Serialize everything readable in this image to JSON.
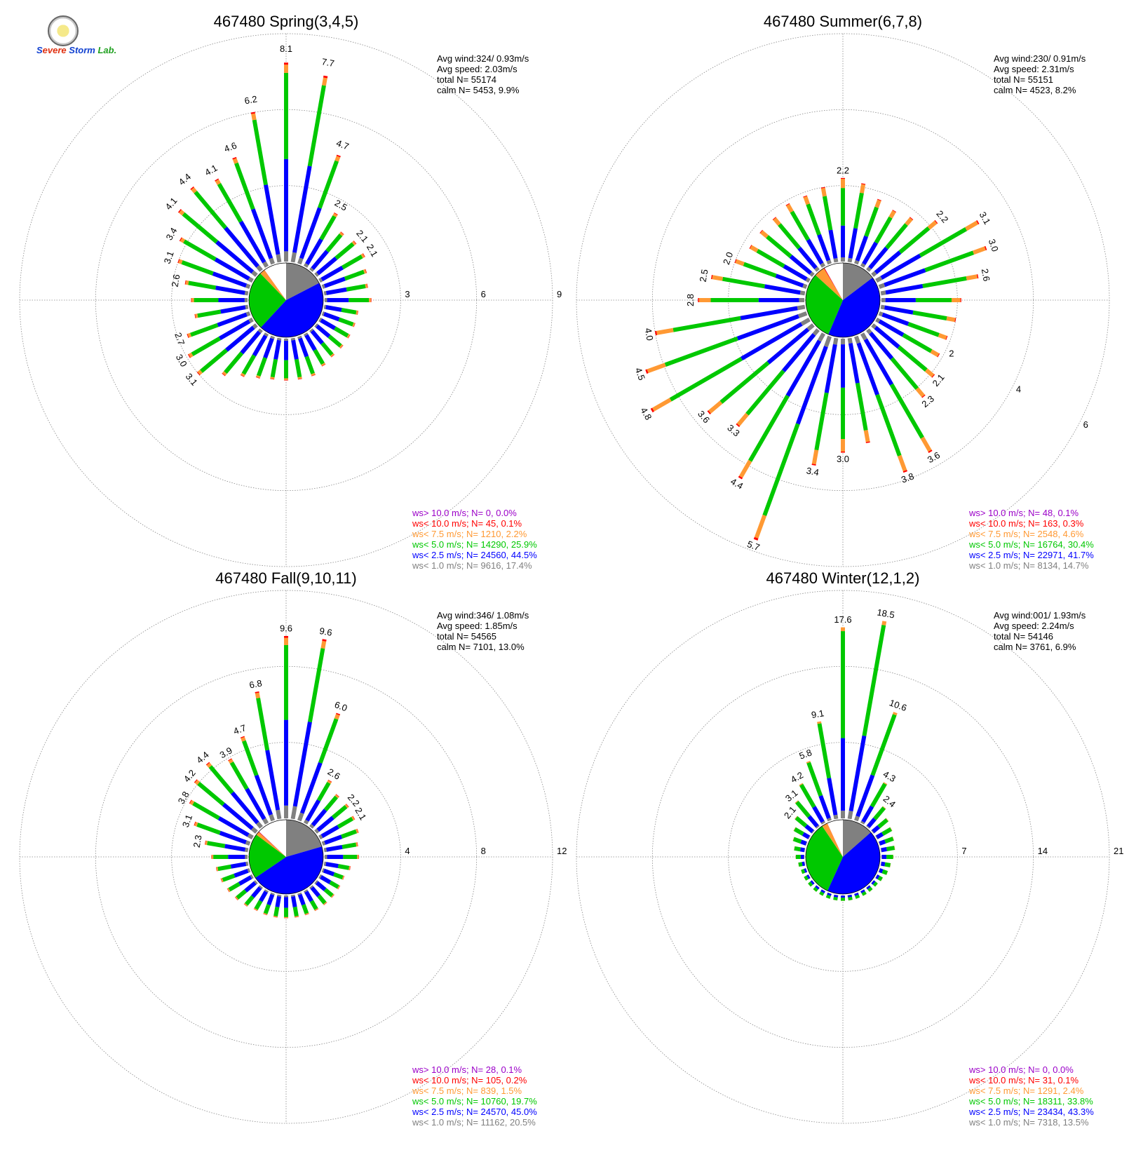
{
  "logo": {
    "text": "Severe Storm Lab."
  },
  "colors": {
    "ws_gt10": "#9b00c8",
    "ws_lt10": "#ff0000",
    "ws_lt7_5": "#ff9933",
    "ws_lt5": "#00c800",
    "ws_lt2_5": "#0000ff",
    "ws_lt1": "#808080",
    "calm": "#ffffff",
    "grid": "#888888"
  },
  "chart_data": [
    {
      "type": "polar-bar",
      "title": "467480 Spring(3,4,5)",
      "stats": [
        "Avg wind:324/ 0.93m/s",
        "Avg speed: 2.03m/s",
        "total N=      55174",
        "calm N=   5453,   9.9%"
      ],
      "ring_labels": [
        "3",
        "6",
        "9"
      ],
      "rmax": 9,
      "bar_labels": [
        [
          "8.1",
          0
        ],
        [
          "7.7",
          10
        ],
        [
          "4.7",
          20
        ],
        [
          "2.5",
          30
        ],
        [
          "2.1",
          50
        ],
        [
          "2.1",
          60
        ],
        [
          "6.2",
          350
        ],
        [
          "4.6",
          340
        ],
        [
          "4.1",
          330
        ],
        [
          "4.4",
          320
        ],
        [
          "4.1",
          310
        ],
        [
          "3.4",
          300
        ],
        [
          "3.1",
          290
        ],
        [
          "2.6",
          280
        ],
        [
          "2.7",
          250
        ],
        [
          "3.0",
          240
        ],
        [
          "3.1",
          230
        ]
      ],
      "directions": [
        0,
        10,
        20,
        30,
        40,
        50,
        60,
        70,
        80,
        90,
        100,
        110,
        120,
        130,
        140,
        150,
        160,
        170,
        180,
        190,
        200,
        210,
        220,
        230,
        240,
        250,
        260,
        270,
        280,
        290,
        300,
        310,
        320,
        330,
        340,
        350
      ],
      "totals": [
        8.1,
        7.7,
        4.7,
        2.5,
        2.0,
        2.1,
        2.1,
        1.9,
        1.8,
        1.9,
        1.4,
        1.4,
        1.4,
        1.4,
        1.4,
        1.5,
        1.7,
        1.7,
        1.7,
        1.7,
        1.8,
        2.0,
        2.4,
        3.1,
        3.0,
        2.7,
        2.2,
        2.3,
        2.6,
        3.1,
        3.4,
        4.1,
        4.4,
        4.1,
        4.6,
        6.2
      ],
      "shares": [
        0.05,
        0.45,
        0.42,
        0.04,
        0.01
      ],
      "pie": [
        17.4,
        44.5,
        25.9,
        2.2,
        0.1,
        0.0,
        9.9
      ],
      "legend": [
        "ws> 10.0 m/s; N=     0,  0.0%",
        "ws< 10.0 m/s; N=    45,  0.1%",
        "ws<  7.5 m/s; N=  1210,  2.2%",
        "ws<  5.0 m/s; N= 14290, 25.9%",
        "ws<  2.5 m/s; N= 24560, 44.5%",
        "ws<  1.0 m/s; N=  9616, 17.4%"
      ]
    },
    {
      "type": "polar-bar",
      "title": "467480 Summer(6,7,8)",
      "stats": [
        "Avg wind:230/ 0.91m/s",
        "Avg speed: 2.31m/s",
        "total N=      55151",
        "calm N=   4523,   8.2%"
      ],
      "ring_labels": [
        "2",
        "4",
        "6"
      ],
      "rmax": 6,
      "bar_labels": [
        [
          "2.2",
          0
        ],
        [
          "2.2",
          50
        ],
        [
          "3.1",
          60
        ],
        [
          "3.0",
          70
        ],
        [
          "2.6",
          80
        ],
        [
          "2.1",
          130
        ],
        [
          "2.3",
          140
        ],
        [
          "3.6",
          150
        ],
        [
          "3.8",
          160
        ],
        [
          "3.0",
          180
        ],
        [
          "3.4",
          190
        ],
        [
          "5.7",
          200
        ],
        [
          "4.4",
          210
        ],
        [
          "3.3",
          220
        ],
        [
          "3.6",
          230
        ],
        [
          "4.8",
          240
        ],
        [
          "4.5",
          250
        ],
        [
          "4.0",
          260
        ],
        [
          "2.8",
          270
        ],
        [
          "2.5",
          280
        ],
        [
          "2.0",
          290
        ]
      ],
      "directions": [
        0,
        10,
        20,
        30,
        40,
        50,
        60,
        70,
        80,
        90,
        100,
        110,
        120,
        130,
        140,
        150,
        160,
        170,
        180,
        190,
        200,
        210,
        220,
        230,
        240,
        250,
        260,
        270,
        280,
        290,
        300,
        310,
        320,
        330,
        340,
        350
      ],
      "totals": [
        2.2,
        2.1,
        1.8,
        1.7,
        1.8,
        2.2,
        3.1,
        3.0,
        2.6,
        2.1,
        2.0,
        1.9,
        1.9,
        2.1,
        2.3,
        3.6,
        3.8,
        2.8,
        3.0,
        3.4,
        5.7,
        4.4,
        3.3,
        3.6,
        4.8,
        4.5,
        4.0,
        2.8,
        2.5,
        2.0,
        1.8,
        1.8,
        1.8,
        1.9,
        1.9,
        2.0
      ],
      "shares": [
        0.05,
        0.38,
        0.45,
        0.11,
        0.01
      ],
      "pie": [
        14.7,
        41.7,
        30.4,
        4.6,
        0.3,
        0.1,
        8.2
      ],
      "legend": [
        "ws> 10.0 m/s; N=    48,  0.1%",
        "ws< 10.0 m/s; N=   163,  0.3%",
        "ws<  7.5 m/s; N=  2548,  4.6%",
        "ws<  5.0 m/s; N= 16764, 30.4%",
        "ws<  2.5 m/s; N= 22971, 41.7%",
        "ws<  1.0 m/s; N=  8134, 14.7%"
      ]
    },
    {
      "type": "polar-bar",
      "title": "467480 Fall(9,10,11)",
      "stats": [
        "Avg wind:346/ 1.08m/s",
        "Avg speed: 1.85m/s",
        "total N=      54565",
        "calm N=   7101,  13.0%"
      ],
      "ring_labels": [
        "4",
        "8",
        "12"
      ],
      "rmax": 12,
      "bar_labels": [
        [
          "9.6",
          0
        ],
        [
          "9.6",
          10
        ],
        [
          "6.0",
          20
        ],
        [
          "2.6",
          30
        ],
        [
          "2.2",
          50
        ],
        [
          "2.1",
          60
        ],
        [
          "6.8",
          350
        ],
        [
          "4.7",
          340
        ],
        [
          "3.9",
          330
        ],
        [
          "4.4",
          320
        ],
        [
          "4.2",
          310
        ],
        [
          "3.8",
          300
        ],
        [
          "3.1",
          290
        ],
        [
          "2.3",
          280
        ]
      ],
      "directions": [
        0,
        10,
        20,
        30,
        40,
        50,
        60,
        70,
        80,
        90,
        100,
        110,
        120,
        130,
        140,
        150,
        160,
        170,
        180,
        190,
        200,
        210,
        220,
        230,
        240,
        250,
        260,
        270,
        280,
        290,
        300,
        310,
        320,
        330,
        340,
        350
      ],
      "totals": [
        9.6,
        9.6,
        6.0,
        2.6,
        2.2,
        2.2,
        2.1,
        2.0,
        1.8,
        1.8,
        1.4,
        1.2,
        1.2,
        1.2,
        1.2,
        1.2,
        1.2,
        1.2,
        1.2,
        1.2,
        1.2,
        1.2,
        1.3,
        1.4,
        1.5,
        1.6,
        1.7,
        1.9,
        2.3,
        3.1,
        3.8,
        4.2,
        4.4,
        3.9,
        4.7,
        6.8
      ],
      "shares": [
        0.07,
        0.47,
        0.41,
        0.04,
        0.01
      ],
      "pie": [
        20.5,
        45.0,
        19.7,
        1.5,
        0.2,
        0.1,
        13.0
      ],
      "legend": [
        "ws> 10.0 m/s; N=    28,  0.1%",
        "ws< 10.0 m/s; N=   105,  0.2%",
        "ws<  7.5 m/s; N=   839,  1.5%",
        "ws<  5.0 m/s; N= 10760, 19.7%",
        "ws<  2.5 m/s; N= 24570, 45.0%",
        "ws<  1.0 m/s; N= 11162, 20.5%"
      ]
    },
    {
      "type": "polar-bar",
      "title": "467480 Winter(12,1,2)",
      "stats": [
        "Avg wind:001/ 1.93m/s",
        "Avg speed: 2.24m/s",
        "total N=      54146",
        "calm N=   3761,   6.9%"
      ],
      "ring_labels": [
        "7",
        "14",
        "21"
      ],
      "rmax": 21,
      "bar_labels": [
        [
          "17.6",
          0
        ],
        [
          "18.5",
          10
        ],
        [
          "10.6",
          20
        ],
        [
          "4.3",
          30
        ],
        [
          "2.4",
          40
        ],
        [
          "9.1",
          350
        ],
        [
          "5.8",
          340
        ],
        [
          "4.2",
          330
        ],
        [
          "3.1",
          320
        ],
        [
          "2.1",
          310
        ]
      ],
      "directions": [
        0,
        10,
        20,
        30,
        40,
        50,
        60,
        70,
        80,
        90,
        100,
        110,
        120,
        130,
        140,
        150,
        160,
        170,
        180,
        190,
        200,
        210,
        220,
        230,
        240,
        250,
        260,
        270,
        280,
        290,
        300,
        310,
        320,
        330,
        340,
        350
      ],
      "totals": [
        17.6,
        18.5,
        10.6,
        4.3,
        2.4,
        1.8,
        1.6,
        1.4,
        1.3,
        1.1,
        0.9,
        0.8,
        0.6,
        0.5,
        0.5,
        0.5,
        0.5,
        0.5,
        0.5,
        0.5,
        0.5,
        0.5,
        0.5,
        0.5,
        0.5,
        0.5,
        0.6,
        0.8,
        1.0,
        1.3,
        1.6,
        2.1,
        3.1,
        4.2,
        5.8,
        9.1
      ],
      "shares": [
        0.04,
        0.38,
        0.56,
        0.02,
        0.0
      ],
      "pie": [
        13.5,
        43.3,
        33.8,
        2.4,
        0.1,
        0.0,
        6.9
      ],
      "legend": [
        "ws> 10.0 m/s; N=     0,  0.0%",
        "ws< 10.0 m/s; N=    31,  0.1%",
        "ws<  7.5 m/s; N=  1291,  2.4%",
        "ws<  5.0 m/s; N= 18311, 33.8%",
        "ws<  2.5 m/s; N= 23434, 43.3%",
        "ws<  1.0 m/s; N=  7318, 13.5%"
      ]
    }
  ]
}
